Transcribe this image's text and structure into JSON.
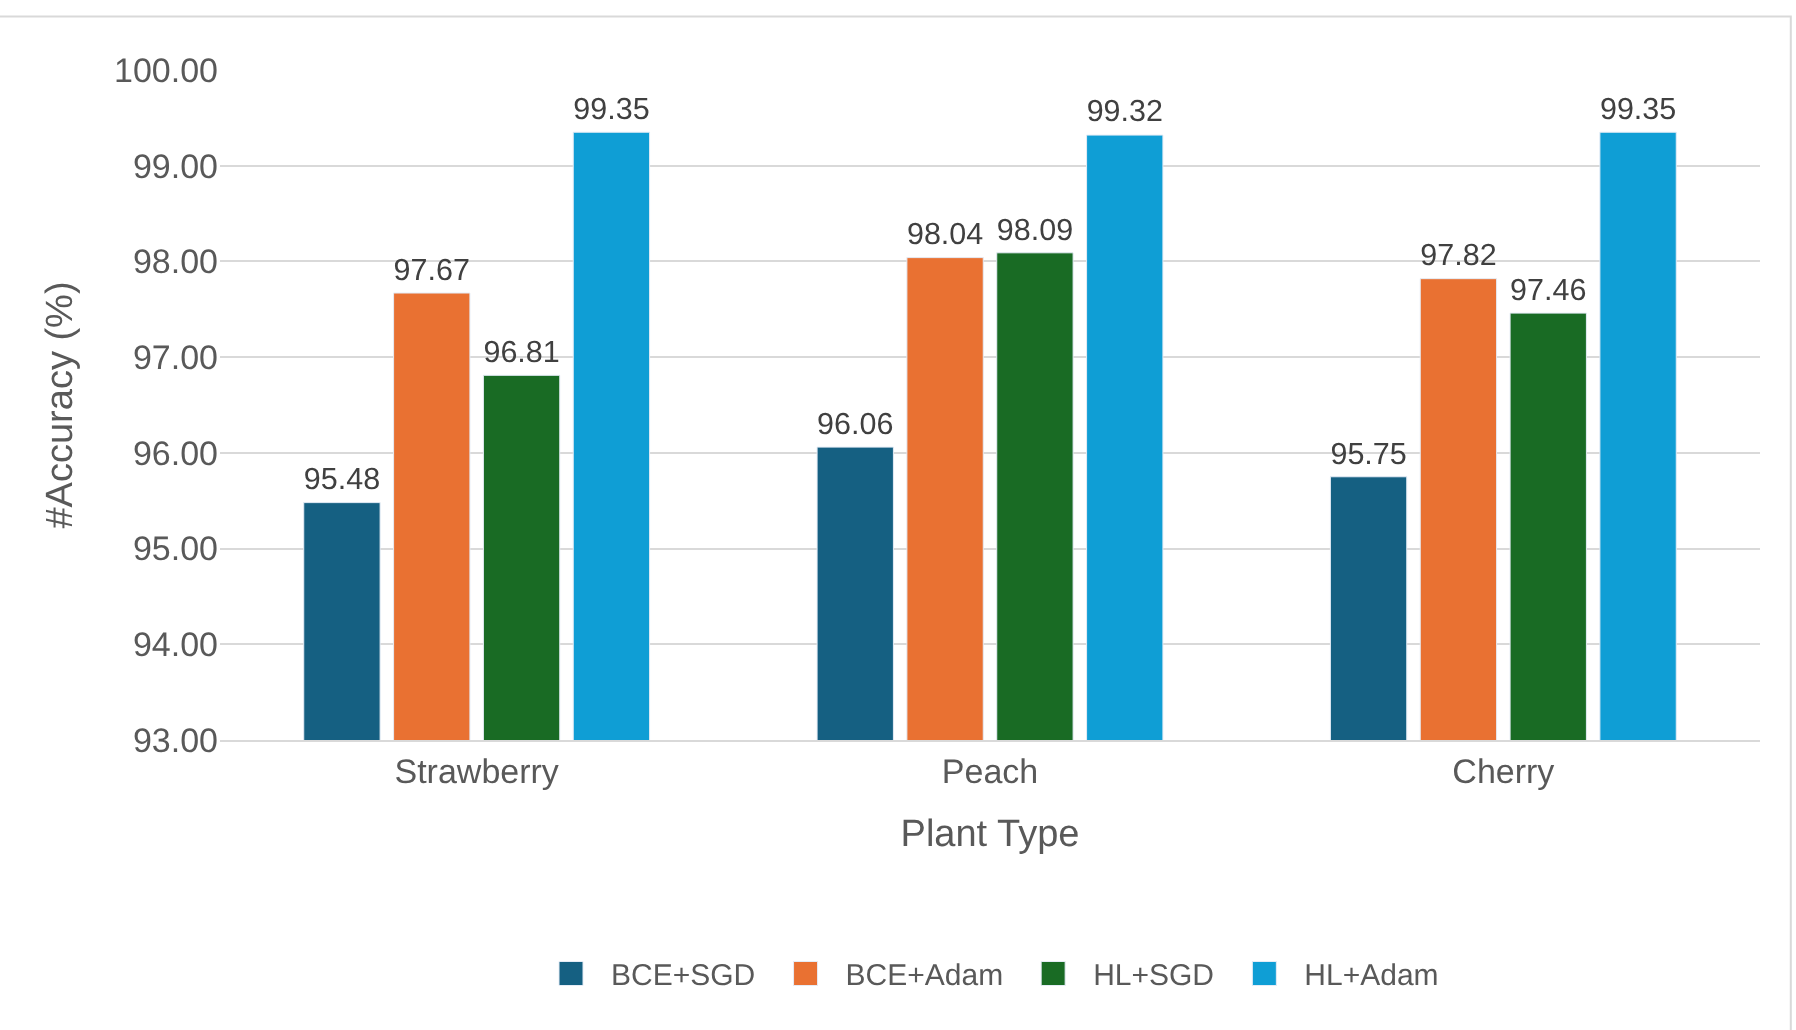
{
  "chart_data": {
    "type": "bar",
    "xlabel": "Plant Type",
    "ylabel": "#Accuracy (%)",
    "categories": [
      "Strawberry",
      "Peach",
      "Cherry"
    ],
    "series": [
      {
        "name": "BCE+SGD",
        "color": "#156082",
        "values": [
          95.48,
          96.06,
          95.75
        ]
      },
      {
        "name": "BCE+Adam",
        "color": "#e97132",
        "values": [
          97.67,
          98.04,
          97.82
        ]
      },
      {
        "name": "HL+SGD",
        "color": "#196b24",
        "values": [
          96.81,
          98.09,
          97.46
        ]
      },
      {
        "name": "HL+Adam",
        "color": "#0f9ed5",
        "values": [
          99.35,
          99.32,
          99.35
        ]
      }
    ],
    "ylim": [
      93,
      100
    ],
    "yticks": [
      {
        "value": 93,
        "label": "93.00"
      },
      {
        "value": 94,
        "label": "94.00"
      },
      {
        "value": 95,
        "label": "95.00"
      },
      {
        "value": 96,
        "label": "96.00"
      },
      {
        "value": 97,
        "label": "97.00"
      },
      {
        "value": 98,
        "label": "98.00"
      },
      {
        "value": 99,
        "label": "99.00"
      },
      {
        "value": 100,
        "label": "100.00"
      }
    ],
    "grid": "y",
    "legend": "bottom",
    "data_labels": true
  }
}
